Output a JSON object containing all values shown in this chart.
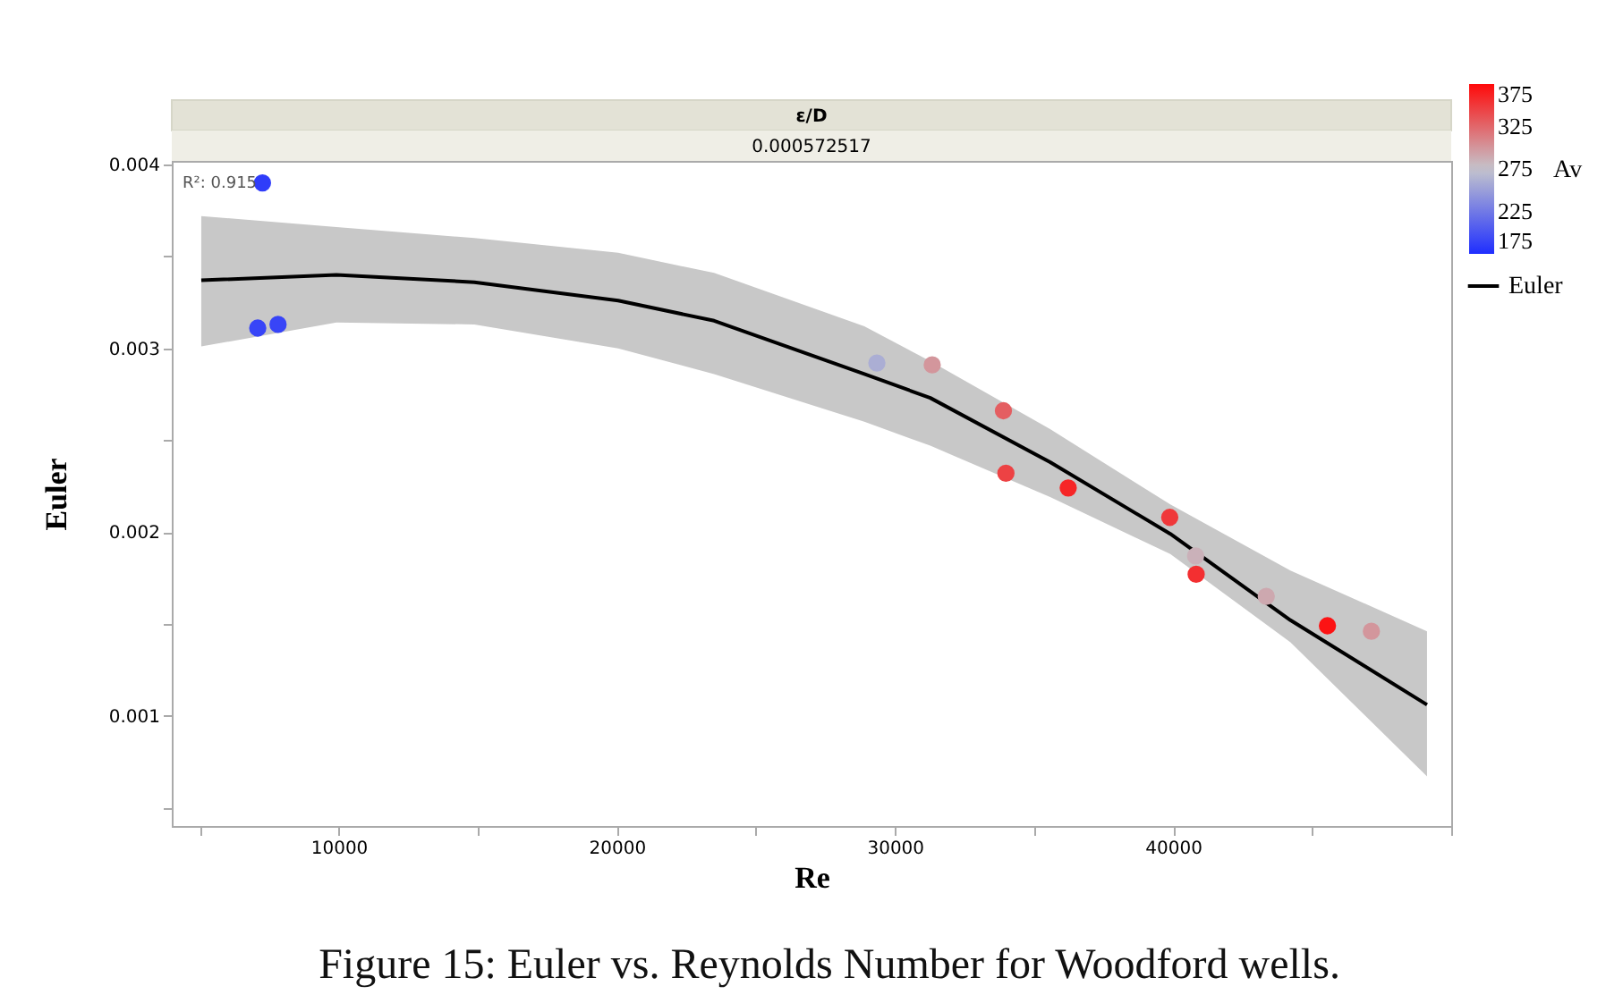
{
  "chart_data": {
    "type": "scatter",
    "title": "ε/D",
    "subtitle": "0.000572517",
    "xlabel": "Re",
    "ylabel": "Euler",
    "legend_title": "Av",
    "annotations": [
      "R²: 0.915",
      "Figure 15: Euler vs. Reynolds Number for Woodford wells."
    ],
    "x": [
      7260,
      7090,
      7820,
      29350,
      31340,
      33900,
      33990,
      36230,
      39880,
      40810,
      40830,
      43350,
      45550,
      47130
    ],
    "values": [
      0.0039,
      0.00311,
      0.00313,
      0.00292,
      0.00291,
      0.00266,
      0.00232,
      0.00224,
      0.00208,
      0.00187,
      0.00177,
      0.00165,
      0.00149,
      0.00146
    ],
    "cvalues": [
      185,
      190,
      190,
      260,
      300,
      330,
      345,
      360,
      350,
      285,
      355,
      290,
      370,
      300
    ],
    "colors": [
      "#2f3dfa",
      "#3845f7",
      "#3845f7",
      "#abaed4",
      "#d3969c",
      "#e45e61",
      "#ed4244",
      "#f62627",
      "#f0383a",
      "#cab1b9",
      "#f32f31",
      "#cda8af",
      "#fc1314",
      "#d3969c"
    ],
    "clim": [
      175,
      375
    ],
    "cticks": [
      175,
      225,
      275,
      325,
      375
    ],
    "series": [
      {
        "name": "Euler",
        "type": "line",
        "color": "#000000",
        "marker": "none",
        "x": [
          5060,
          9920,
          14880,
          20050,
          23500,
          28900,
          31270,
          35580,
          39900,
          44220,
          49130
        ],
        "values": [
          0.00337,
          0.0034,
          0.00336,
          0.00326,
          0.00315,
          0.00286,
          0.00273,
          0.00238,
          0.00199,
          0.00152,
          0.00106
        ],
        "upper": [
          0.00372,
          0.00366,
          0.0036,
          0.00352,
          0.00341,
          0.00312,
          0.00293,
          0.00256,
          0.00215,
          0.00179,
          0.00146
        ],
        "lower": [
          0.00301,
          0.00314,
          0.00313,
          0.003,
          0.00286,
          0.0026,
          0.00247,
          0.00219,
          0.00188,
          0.0014,
          0.00067
        ]
      }
    ],
    "xlim": [
      4000,
      50000
    ],
    "xticks": [
      {
        "value": 5000,
        "label": null
      },
      10000,
      {
        "value": 15000,
        "label": null
      },
      20000,
      {
        "value": 25000,
        "label": null
      },
      30000,
      {
        "value": 35000,
        "label": null
      },
      40000,
      {
        "value": 45000,
        "label": null
      },
      {
        "value": 50000,
        "label": null
      }
    ],
    "ylim": [
      0.0004,
      0.00402
    ],
    "yticks": [
      {
        "value": 0.0005,
        "label": null
      },
      0.001,
      {
        "value": 0.0015,
        "label": null
      },
      0.002,
      {
        "value": 0.0025,
        "label": null
      },
      0.003,
      {
        "value": 0.0035,
        "label": null
      },
      0.004
    ],
    "grid": false,
    "legend": "right",
    "marker": "circle"
  }
}
